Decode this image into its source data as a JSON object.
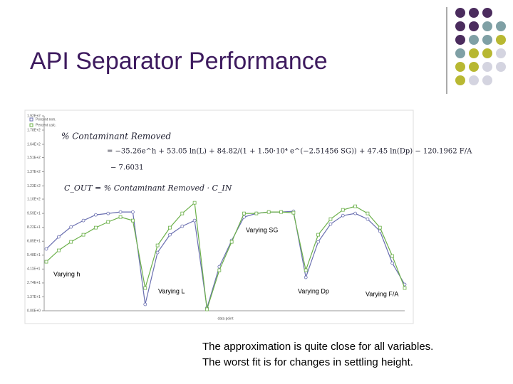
{
  "slide": {
    "title": "API Separator Performance",
    "caption": [
      "The approximation is quite close for all variables.",
      "The worst fit is for changes in settling height."
    ]
  },
  "chart_data": {
    "type": "line",
    "categories": [
      null,
      null,
      null,
      null,
      null,
      null,
      null,
      null,
      null,
      null,
      null,
      null,
      null,
      null,
      null,
      null,
      null,
      null,
      null,
      null,
      null,
      null,
      null,
      null,
      null,
      null,
      null,
      null,
      null,
      null
    ],
    "series": [
      {
        "name": "Percent rem.",
        "color": "#6a6fb0",
        "values": [
          60.9,
          72.8,
          82.6,
          88.9,
          94.5,
          95.9,
          97.3,
          97.3,
          6.3,
          57.4,
          74.9,
          83.3,
          88.9,
          2.8,
          43.4,
          69.3,
          92.4,
          95.9,
          97.3,
          97.3,
          98,
          32.9,
          67.9,
          85.4,
          93.8,
          95.9,
          90.3,
          78.4,
          46.9,
          25.9
        ]
      },
      {
        "name": "Percent calc.",
        "color": "#6cb04a",
        "values": [
          48.3,
          59.5,
          67.9,
          74.9,
          81.9,
          87.5,
          92.4,
          88.9,
          22.4,
          64.4,
          81.9,
          95.9,
          106.4,
          1.4,
          39.9,
          67.9,
          95.9,
          95.9,
          97.3,
          97.3,
          96.6,
          39.9,
          74.9,
          90.3,
          99.4,
          102.9,
          95.9,
          81.9,
          53.9,
          22.4
        ]
      }
    ],
    "xlabel": "data point",
    "ylim": [
      0,
      192
    ],
    "yticks": [
      {
        "value": 0,
        "label": "0.00E+0"
      },
      {
        "value": 13.7,
        "label": "1.37E+1"
      },
      {
        "value": 27.4,
        "label": "2.74E+1"
      },
      {
        "value": 41.1,
        "label": "4.11E+1"
      },
      {
        "value": 54.8,
        "label": "5.48E+1"
      },
      {
        "value": 68.5,
        "label": "6.85E+1"
      },
      {
        "value": 82.2,
        "label": "8.22E+1"
      },
      {
        "value": 95.9,
        "label": "9.59E+1"
      },
      {
        "value": 110,
        "label": "1.10E+2"
      },
      {
        "value": 123,
        "label": "1.23E+2"
      },
      {
        "value": 137,
        "label": "1.37E+2"
      },
      {
        "value": 151,
        "label": "1.51E+2"
      },
      {
        "value": 164,
        "label": "1.64E+2"
      },
      {
        "value": 178,
        "label": "1.78E+2"
      },
      {
        "value": 192,
        "label": "1.92E+2"
      }
    ],
    "equation": [
      "% Contaminant Removed",
      "= −35.26e^h + 53.05 ln(L) + 84.82/(1 + 1.50·10⁴ e^(−2.51456 SG)) + 47.45 ln(Dp) − 120.1962 F/A",
      "− 7.6031",
      "C_OUT = % Contaminant Removed · C_IN"
    ],
    "annotations": [
      "Varying h",
      "Varying L",
      "Varying SG",
      "Varying Dp",
      "Varying F/A"
    ]
  }
}
